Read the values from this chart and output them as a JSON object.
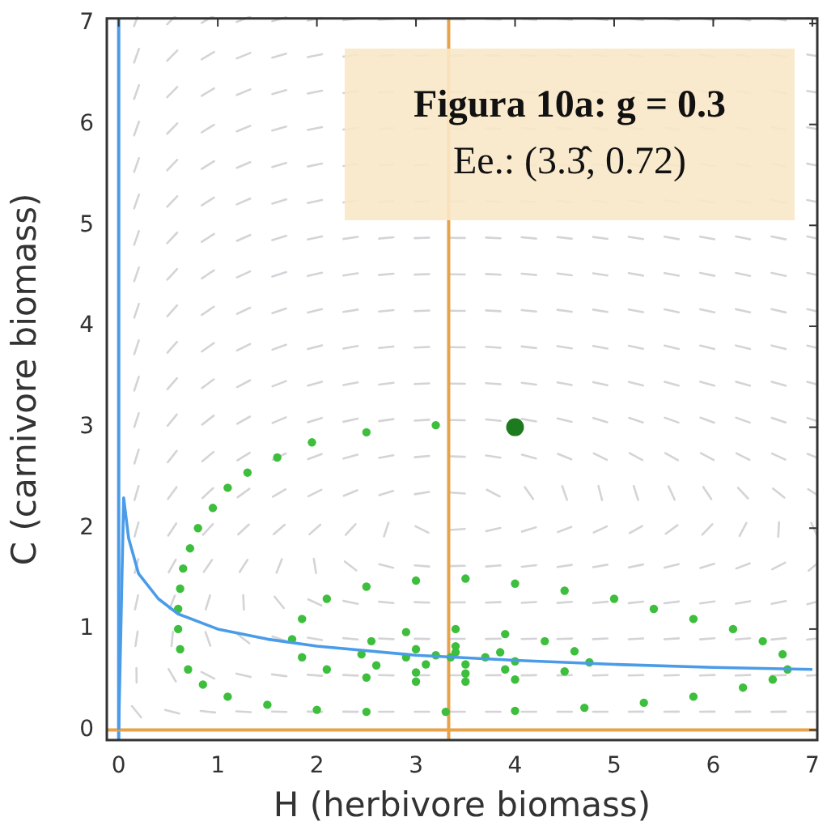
{
  "chart_data": {
    "type": "scatter",
    "title": "Figura 10a: g = 0.3",
    "annotations": [
      "Ee.: (3.3̂, 0.72)"
    ],
    "xlabel": "H (herbivore biomass)",
    "ylabel": "C (carnivore biomass)",
    "xlim": [
      -0.12,
      7.05
    ],
    "ylim": [
      -0.1,
      7.05
    ],
    "xticks": [
      0,
      1,
      2,
      3,
      4,
      5,
      6,
      7
    ],
    "yticks": [
      0,
      1,
      2,
      3,
      4,
      5,
      6,
      7
    ],
    "grid": false,
    "legend": false,
    "marker": "circle",
    "ref_lines": [
      {
        "axis": "x",
        "value": 0,
        "color": "#4a9be8"
      },
      {
        "axis": "x",
        "value": 3.33,
        "color": "#e8a24a"
      },
      {
        "axis": "y",
        "value": 0,
        "color": "#e8a24a"
      }
    ],
    "series": [
      {
        "type": "line",
        "color": "#4a9be8",
        "marker": "none",
        "x": [
          0,
          0.05,
          0.1,
          0.2,
          0.4,
          0.6,
          1,
          1.5,
          2,
          3,
          4,
          5,
          6,
          7
        ],
        "values": [
          0,
          2.3,
          1.9,
          1.55,
          1.3,
          1.15,
          1.0,
          0.9,
          0.83,
          0.74,
          0.69,
          0.65,
          0.62,
          0.6
        ]
      },
      {
        "color": "#3dbf3d",
        "x": [
          3.2,
          2.5,
          1.95,
          1.6,
          1.3,
          1.1,
          0.95,
          0.8,
          0.72,
          0.65,
          0.62,
          0.6,
          0.6,
          0.62,
          0.7,
          0.85,
          1.1,
          1.5,
          2,
          2.5,
          3.3,
          4,
          4.7,
          5.3,
          5.8,
          6.3,
          6.6,
          6.75,
          6.7,
          6.5,
          6.2,
          5.8,
          5.4,
          5,
          4.5,
          4,
          3.5,
          3,
          2.5,
          2.1,
          1.85,
          1.75,
          1.85,
          2.1,
          2.5,
          3,
          3.5,
          4,
          4.5,
          4.75,
          4.6,
          4.3,
          3.9,
          3.4,
          2.9,
          2.55,
          2.45,
          2.6,
          3,
          3.5,
          3.9,
          4,
          3.85,
          3.4,
          3,
          2.9,
          3.1,
          3.5,
          3.7,
          3.4,
          3.2,
          3.35
        ],
        "values": [
          3.02,
          2.95,
          2.85,
          2.7,
          2.55,
          2.4,
          2.2,
          2.0,
          1.8,
          1.6,
          1.4,
          1.2,
          1.0,
          0.8,
          0.6,
          0.45,
          0.33,
          0.25,
          0.2,
          0.18,
          0.18,
          0.19,
          0.22,
          0.27,
          0.33,
          0.42,
          0.5,
          0.6,
          0.75,
          0.88,
          1.0,
          1.1,
          1.2,
          1.3,
          1.38,
          1.45,
          1.5,
          1.48,
          1.42,
          1.3,
          1.1,
          0.9,
          0.72,
          0.6,
          0.52,
          0.48,
          0.48,
          0.5,
          0.58,
          0.67,
          0.78,
          0.88,
          0.95,
          1.0,
          0.97,
          0.88,
          0.75,
          0.64,
          0.57,
          0.56,
          0.6,
          0.68,
          0.77,
          0.83,
          0.8,
          0.72,
          0.65,
          0.65,
          0.72,
          0.77,
          0.74,
          0.72
        ]
      },
      {
        "color": "#1e7a1e",
        "marker": "circle",
        "x": [
          4
        ],
        "values": [
          3
        ]
      }
    ]
  }
}
